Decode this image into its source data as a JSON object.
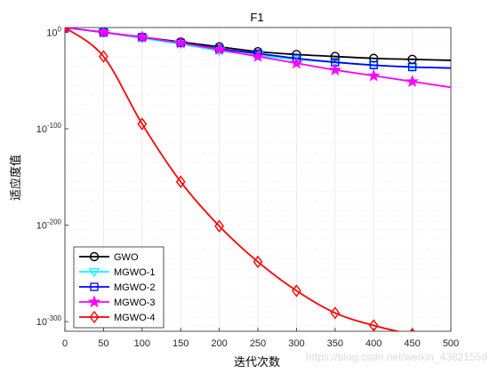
{
  "chart_data": {
    "type": "line",
    "title": "F1",
    "xlabel": "迭代次数",
    "ylabel": "适应度值",
    "xlim": [
      0,
      500
    ],
    "ylim_exponent": [
      -310,
      5
    ],
    "y_scale": "log",
    "grid": true,
    "legend_position": "bottom-left",
    "x_ticks": [
      0,
      50,
      100,
      150,
      200,
      250,
      300,
      350,
      400,
      450,
      500
    ],
    "x_tick_labels": [
      "0",
      "50",
      "100",
      "150",
      "200",
      "250",
      "300",
      "350",
      "400",
      "450",
      "500"
    ],
    "y_ticks_exponent": [
      0,
      -100,
      -200,
      -300
    ],
    "y_tick_base": "10",
    "y_tick_exponent_labels": [
      "0",
      "-100",
      "-200",
      "-300"
    ],
    "series": [
      {
        "name": "GWO",
        "color": "#000000",
        "marker": "circle",
        "x": [
          0,
          50,
          100,
          150,
          200,
          250,
          300,
          350,
          400,
          450,
          500
        ],
        "y_exponent": [
          5,
          0,
          -5,
          -10,
          -15,
          -20,
          -23,
          -25,
          -27,
          -28,
          -29
        ]
      },
      {
        "name": "MGWO-1",
        "color": "#00ffff",
        "marker": "triangle-down",
        "x": [
          0,
          50,
          100,
          150,
          200,
          250,
          300,
          350,
          400,
          450,
          500
        ],
        "y_exponent": [
          5,
          0,
          -6,
          -12,
          -19,
          -24,
          -28,
          -31,
          -34,
          -36,
          -37
        ]
      },
      {
        "name": "MGWO-2",
        "color": "#0000ff",
        "marker": "square",
        "x": [
          0,
          50,
          100,
          150,
          200,
          250,
          300,
          350,
          400,
          450,
          500
        ],
        "y_exponent": [
          5,
          0,
          -5,
          -11,
          -17,
          -22,
          -27,
          -31,
          -34,
          -36,
          -37
        ]
      },
      {
        "name": "MGWO-3",
        "color": "#ff00ff",
        "marker": "star",
        "x": [
          0,
          50,
          100,
          150,
          200,
          250,
          300,
          350,
          400,
          450,
          500
        ],
        "y_exponent": [
          5,
          0,
          -5,
          -11,
          -18,
          -25,
          -32,
          -39,
          -45,
          -51,
          -57
        ]
      },
      {
        "name": "MGWO-4",
        "color": "#ff0000",
        "marker": "diamond",
        "x": [
          0,
          50,
          100,
          150,
          200,
          250,
          300,
          350,
          400,
          450,
          500
        ],
        "y_exponent": [
          5,
          -25,
          -95,
          -155,
          -201,
          -238,
          -268,
          -291,
          -304,
          -313,
          -318
        ]
      }
    ]
  },
  "watermark": "https://blog.csdn.net/weixin_43821559"
}
